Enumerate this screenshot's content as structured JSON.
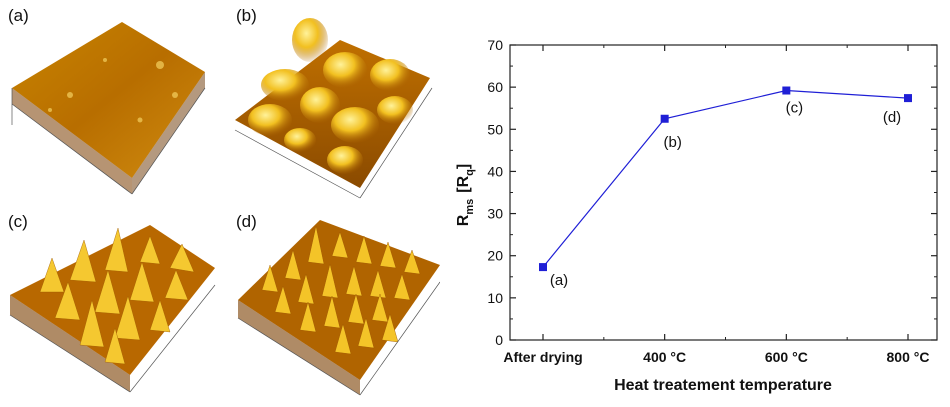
{
  "panels": [
    {
      "label": "(a)"
    },
    {
      "label": "(b)"
    },
    {
      "label": "(c)"
    },
    {
      "label": "(d)"
    }
  ],
  "colors": {
    "series": "#1f1fd6",
    "surface_dark": "#8a4a00",
    "surface_mid": "#c77a00",
    "surface_light": "#ffe060"
  },
  "chart_data": {
    "type": "line",
    "categories": [
      "After drying",
      "400 °C",
      "600 °C",
      "800 °C"
    ],
    "series": [
      {
        "values": [
          17.3,
          52.5,
          59.2,
          57.4
        ],
        "point_labels": [
          "(a)",
          "(b)",
          "(c)",
          "(d)"
        ]
      }
    ],
    "xlabel": "Heat treatement temperature",
    "ylabel_main": "R",
    "ylabel_sub": "ms",
    "ylabel_bracket": "[R",
    "ylabel_bracket_sub": "q",
    "ylabel_close": "]",
    "ylim": [
      0,
      70
    ],
    "yticks": [
      "0",
      "10",
      "20",
      "30",
      "40",
      "50",
      "60",
      "70"
    ],
    "grid": false
  }
}
